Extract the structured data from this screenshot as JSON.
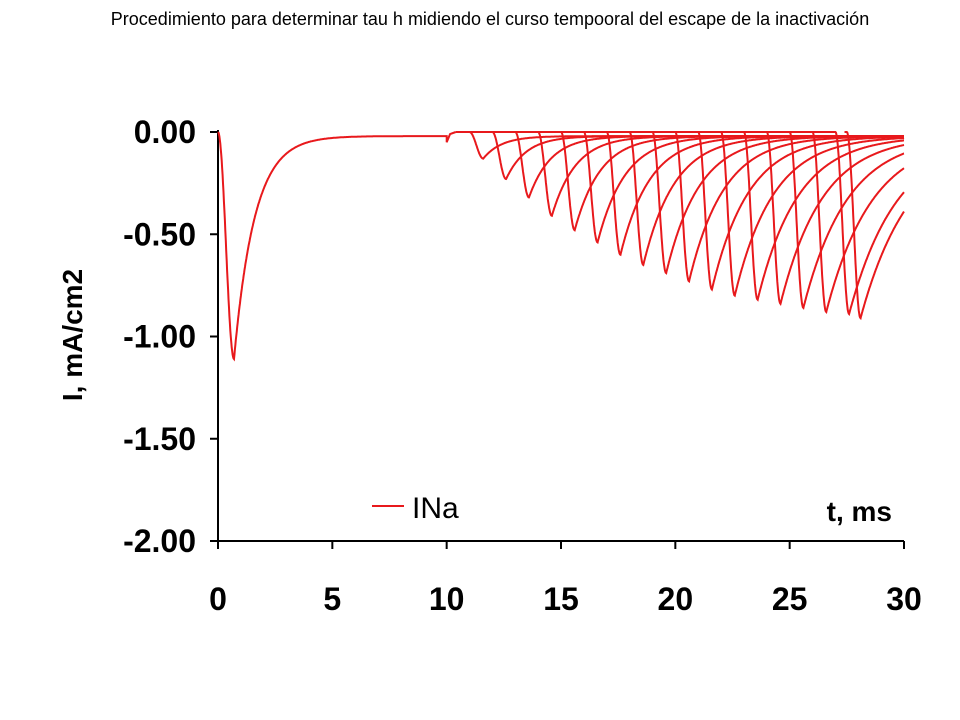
{
  "chart_data": {
    "type": "line",
    "title": "Procedimiento para determinar tau h midiendo el curso tempooral del escape de la inactivación",
    "xlabel": "t, ms",
    "ylabel": "I, mA/cm2",
    "xlim": [
      0,
      30
    ],
    "ylim": [
      -2.0,
      0.0
    ],
    "x_ticks": [
      "0",
      "5",
      "10",
      "15",
      "20",
      "25",
      "30"
    ],
    "y_ticks": [
      "0.00",
      "-0.50",
      "-1.00",
      "-1.50",
      "-2.00"
    ],
    "grid": false,
    "legend_position": "bottom-center",
    "series": [
      {
        "name": "INa",
        "color": "#e8191c",
        "initial_pulse": {
          "onset": 0,
          "peak_time": 0.7,
          "peak": -1.11,
          "baseline": -0.02,
          "end": 10
        },
        "test_pulses": [
          {
            "onset": 11.0,
            "peak": -0.13
          },
          {
            "onset": 12.0,
            "peak": -0.23
          },
          {
            "onset": 13.0,
            "peak": -0.32
          },
          {
            "onset": 14.0,
            "peak": -0.41
          },
          {
            "onset": 15.0,
            "peak": -0.48
          },
          {
            "onset": 16.0,
            "peak": -0.54
          },
          {
            "onset": 17.0,
            "peak": -0.6
          },
          {
            "onset": 18.0,
            "peak": -0.65
          },
          {
            "onset": 19.0,
            "peak": -0.69
          },
          {
            "onset": 20.0,
            "peak": -0.73
          },
          {
            "onset": 21.0,
            "peak": -0.77
          },
          {
            "onset": 22.0,
            "peak": -0.8
          },
          {
            "onset": 23.0,
            "peak": -0.82
          },
          {
            "onset": 24.0,
            "peak": -0.84
          },
          {
            "onset": 25.0,
            "peak": -0.86
          },
          {
            "onset": 26.0,
            "peak": -0.88
          },
          {
            "onset": 27.0,
            "peak": -0.89
          },
          {
            "onset": 27.5,
            "peak": -0.91
          }
        ]
      }
    ]
  }
}
